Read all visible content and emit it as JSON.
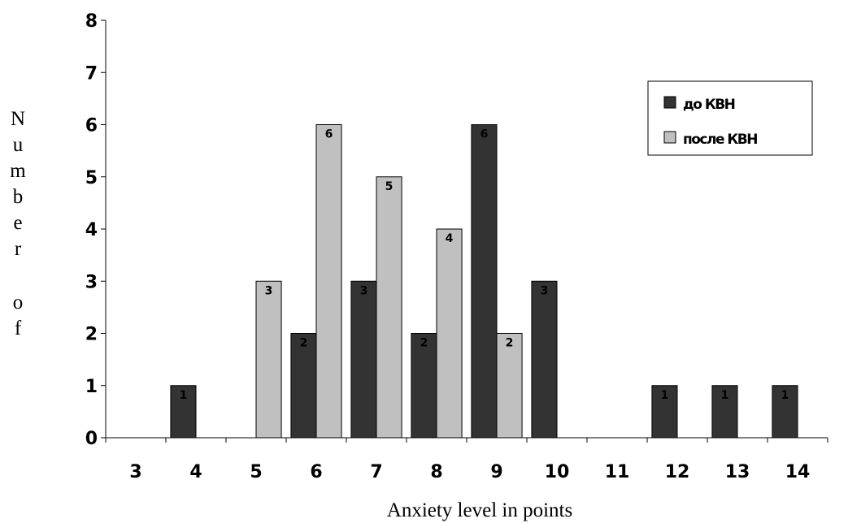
{
  "chart_data": {
    "type": "bar",
    "title": "",
    "xlabel": "Anxiety level in points",
    "ylabel": "Number of",
    "ylim": [
      0,
      8
    ],
    "yticks": [
      "0",
      "1",
      "2",
      "3",
      "4",
      "5",
      "6",
      "7",
      "8"
    ],
    "categories": [
      "3",
      "4",
      "5",
      "6",
      "7",
      "8",
      "9",
      "10",
      "11",
      "12",
      "13",
      "14"
    ],
    "series": [
      {
        "name": "до КВН",
        "color": "#333333",
        "values": [
          0,
          1,
          0,
          2,
          3,
          2,
          6,
          3,
          0,
          1,
          1,
          1
        ]
      },
      {
        "name": "после КВН",
        "color": "#c0c0c0",
        "values": [
          0,
          0,
          3,
          6,
          5,
          4,
          2,
          0,
          0,
          0,
          0,
          0
        ]
      }
    ],
    "legend_position": "top-right",
    "grid": false
  }
}
